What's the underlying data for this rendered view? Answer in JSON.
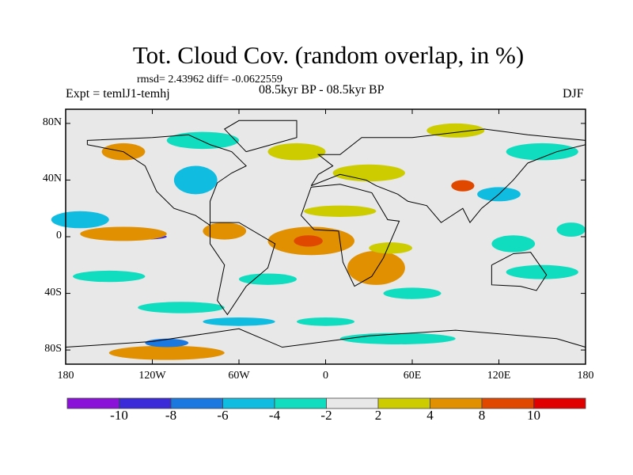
{
  "title": "Tot. Cloud Cov. (random overlap, in %)",
  "rmsd": "rmsd= 2.43962 diff= -0.0622559",
  "expt": "Expt = temlJ1-temhj",
  "period": "08.5kyr BP - 08.5kyr BP",
  "season": "DJF",
  "lat_ticks": [
    "80N",
    "40N",
    "0",
    "40S",
    "80S"
  ],
  "lat_values": [
    80,
    40,
    0,
    -40,
    -80
  ],
  "lon_ticks": [
    "180",
    "120W",
    "60W",
    "0",
    "60E",
    "120E",
    "180"
  ],
  "lon_values": [
    -180,
    -120,
    -60,
    0,
    60,
    120,
    180
  ],
  "colorbar": {
    "colors": [
      "#8a12d8",
      "#3a2ad8",
      "#1a78e0",
      "#10bce0",
      "#10dcc0",
      "#e8e8e8",
      "#cccc00",
      "#e09000",
      "#e04800",
      "#e00000"
    ],
    "labels": [
      "-10",
      "-8",
      "-6",
      "-4",
      "-2",
      "2",
      "4",
      "8",
      "10"
    ]
  },
  "anomalies": [
    {
      "lon": -170,
      "lat": 12,
      "rx": 20,
      "ry": 6,
      "level": 3
    },
    {
      "lon": -125,
      "lat": 0,
      "rx": 15,
      "ry": 2,
      "level": 1
    },
    {
      "lon": -140,
      "lat": 2,
      "rx": 30,
      "ry": 5,
      "level": 7
    },
    {
      "lon": -10,
      "lat": -3,
      "rx": 30,
      "ry": 10,
      "level": 7
    },
    {
      "lon": -12,
      "lat": -3,
      "rx": 10,
      "ry": 4,
      "level": 8
    },
    {
      "lon": -70,
      "lat": 4,
      "rx": 15,
      "ry": 6,
      "level": 7
    },
    {
      "lon": 35,
      "lat": -22,
      "rx": 20,
      "ry": 12,
      "level": 7
    },
    {
      "lon": 45,
      "lat": -8,
      "rx": 15,
      "ry": 4,
      "level": 6
    },
    {
      "lon": -110,
      "lat": -82,
      "rx": 40,
      "ry": 5,
      "level": 7
    },
    {
      "lon": -110,
      "lat": -75,
      "rx": 15,
      "ry": 3,
      "level": 2
    },
    {
      "lon": -90,
      "lat": 40,
      "rx": 15,
      "ry": 10,
      "level": 3
    },
    {
      "lon": -85,
      "lat": 68,
      "rx": 25,
      "ry": 6,
      "level": 4
    },
    {
      "lon": -140,
      "lat": 60,
      "rx": 15,
      "ry": 6,
      "level": 7
    },
    {
      "lon": 90,
      "lat": 75,
      "rx": 20,
      "ry": 5,
      "level": 6
    },
    {
      "lon": 30,
      "lat": 45,
      "rx": 25,
      "ry": 6,
      "level": 6
    },
    {
      "lon": 95,
      "lat": 36,
      "rx": 8,
      "ry": 4,
      "level": 8
    },
    {
      "lon": -150,
      "lat": -28,
      "rx": 25,
      "ry": 4,
      "level": 4
    },
    {
      "lon": -40,
      "lat": -30,
      "rx": 20,
      "ry": 4,
      "level": 4
    },
    {
      "lon": 60,
      "lat": -40,
      "rx": 20,
      "ry": 4,
      "level": 4
    },
    {
      "lon": 130,
      "lat": -5,
      "rx": 15,
      "ry": 6,
      "level": 4
    },
    {
      "lon": 150,
      "lat": -25,
      "rx": 25,
      "ry": 5,
      "level": 4
    },
    {
      "lon": -100,
      "lat": -50,
      "rx": 30,
      "ry": 4,
      "level": 4
    },
    {
      "lon": 50,
      "lat": -72,
      "rx": 40,
      "ry": 4,
      "level": 4
    },
    {
      "lon": 150,
      "lat": 60,
      "rx": 25,
      "ry": 6,
      "level": 4
    },
    {
      "lon": -20,
      "lat": 60,
      "rx": 20,
      "ry": 6,
      "level": 6
    },
    {
      "lon": 10,
      "lat": 18,
      "rx": 25,
      "ry": 4,
      "level": 6
    },
    {
      "lon": 120,
      "lat": 30,
      "rx": 15,
      "ry": 5,
      "level": 3
    },
    {
      "lon": 170,
      "lat": 5,
      "rx": 10,
      "ry": 5,
      "level": 4
    },
    {
      "lon": -60,
      "lat": -60,
      "rx": 25,
      "ry": 3,
      "level": 3
    },
    {
      "lon": 0,
      "lat": -60,
      "rx": 20,
      "ry": 3,
      "level": 4
    }
  ]
}
